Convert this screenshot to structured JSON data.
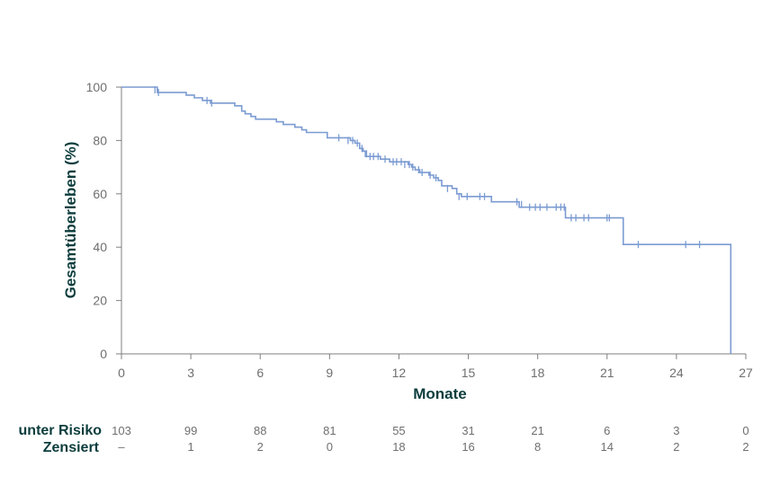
{
  "chart_data": {
    "type": "line",
    "subtype": "kaplan-meier",
    "xlabel": "Monate",
    "ylabel": "Gesamtüberleben (%)",
    "xlim": [
      0,
      27
    ],
    "ylim": [
      0,
      100
    ],
    "xticks": [
      0,
      3,
      6,
      9,
      12,
      15,
      18,
      21,
      24,
      27
    ],
    "yticks": [
      0,
      20,
      40,
      60,
      80,
      100
    ],
    "line_color": "#7b9bd2",
    "axis_color": "#7f7f7f",
    "survival_steps": [
      [
        0,
        100
      ],
      [
        1.55,
        98
      ],
      [
        2.8,
        97
      ],
      [
        3.15,
        96
      ],
      [
        3.5,
        95
      ],
      [
        3.85,
        94
      ],
      [
        4.9,
        93
      ],
      [
        5.2,
        91
      ],
      [
        5.35,
        90
      ],
      [
        5.6,
        89
      ],
      [
        5.8,
        88
      ],
      [
        6.7,
        87
      ],
      [
        7.0,
        86
      ],
      [
        7.5,
        85
      ],
      [
        7.8,
        84
      ],
      [
        8.0,
        83
      ],
      [
        8.9,
        81
      ],
      [
        9.9,
        80
      ],
      [
        10.1,
        79
      ],
      [
        10.3,
        77
      ],
      [
        10.45,
        76
      ],
      [
        10.55,
        74
      ],
      [
        11.2,
        73
      ],
      [
        11.6,
        72
      ],
      [
        12.4,
        71
      ],
      [
        12.55,
        70
      ],
      [
        12.7,
        69
      ],
      [
        12.9,
        68
      ],
      [
        13.3,
        67
      ],
      [
        13.5,
        66
      ],
      [
        13.7,
        65
      ],
      [
        13.85,
        63
      ],
      [
        14.3,
        62
      ],
      [
        14.5,
        60
      ],
      [
        14.7,
        59
      ],
      [
        16.0,
        57
      ],
      [
        17.2,
        55
      ],
      [
        19.2,
        51
      ],
      [
        21.7,
        41
      ],
      [
        26.35,
        0
      ]
    ],
    "censor_marks": [
      [
        1.45,
        99
      ],
      [
        1.6,
        98
      ],
      [
        3.7,
        95
      ],
      [
        3.9,
        94
      ],
      [
        9.4,
        81
      ],
      [
        9.8,
        80
      ],
      [
        10.0,
        80
      ],
      [
        10.2,
        79
      ],
      [
        10.4,
        77
      ],
      [
        10.6,
        75
      ],
      [
        10.75,
        74
      ],
      [
        10.9,
        74
      ],
      [
        11.1,
        74
      ],
      [
        11.4,
        73
      ],
      [
        11.75,
        72
      ],
      [
        11.9,
        72
      ],
      [
        12.1,
        72
      ],
      [
        12.25,
        71
      ],
      [
        12.45,
        71
      ],
      [
        12.6,
        70
      ],
      [
        12.85,
        69
      ],
      [
        13.0,
        68
      ],
      [
        13.35,
        67
      ],
      [
        13.6,
        66
      ],
      [
        14.1,
        62
      ],
      [
        14.6,
        59
      ],
      [
        14.95,
        59
      ],
      [
        15.5,
        59
      ],
      [
        15.7,
        59
      ],
      [
        17.1,
        57
      ],
      [
        17.3,
        56
      ],
      [
        17.65,
        55
      ],
      [
        17.9,
        55
      ],
      [
        18.1,
        55
      ],
      [
        18.4,
        55
      ],
      [
        18.8,
        55
      ],
      [
        19.0,
        55
      ],
      [
        19.15,
        55
      ],
      [
        19.45,
        51
      ],
      [
        19.65,
        51
      ],
      [
        20.0,
        51
      ],
      [
        20.2,
        51
      ],
      [
        21.0,
        51
      ],
      [
        21.1,
        51
      ],
      [
        22.35,
        41
      ],
      [
        24.4,
        41
      ],
      [
        25.0,
        41
      ]
    ],
    "risk_table": {
      "rows": [
        {
          "label": "unter Risiko",
          "values": [
            "103",
            "99",
            "88",
            "81",
            "55",
            "31",
            "21",
            "6",
            "3",
            "0"
          ]
        },
        {
          "label": "Zensiert",
          "values": [
            "–",
            "1",
            "2",
            "0",
            "18",
            "16",
            "8",
            "14",
            "2",
            "2"
          ]
        }
      ]
    }
  }
}
